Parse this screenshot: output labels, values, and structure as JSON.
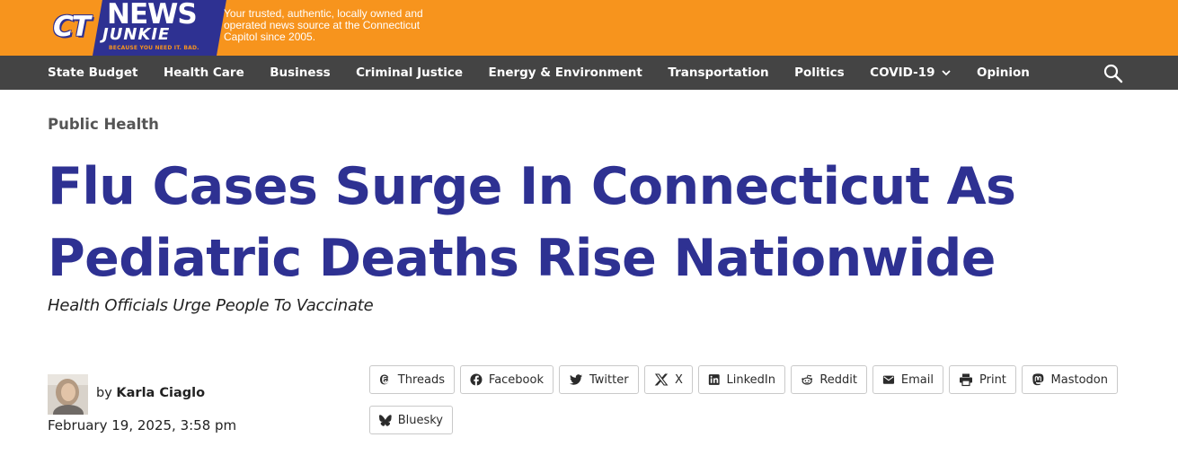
{
  "header": {
    "logo_ct": "CT",
    "logo_news": "NEWS",
    "logo_junkie": "JUNKIE",
    "logo_tagline": "BECAUSE YOU NEED IT. BAD.",
    "description": "Your trusted, authentic, locally owned and operated news source at the Connecticut Capitol since 2005."
  },
  "nav": {
    "items": [
      "State Budget",
      "Health Care",
      "Business",
      "Criminal Justice",
      "Energy & Environment",
      "Transportation",
      "Politics",
      "COVID-19",
      "Opinion"
    ],
    "search_icon": "search-icon"
  },
  "article": {
    "category": "Public Health",
    "title_line1": "Flu Cases Surge In Connecticut As",
    "title_line2": "Pediatric Deaths Rise Nationwide",
    "subtitle": "Health Officials Urge People To Vaccinate",
    "byline_prefix": "by",
    "author": "Karla Ciaglo",
    "date": "February 19, 2025, 3:58 pm"
  },
  "share": {
    "buttons": [
      {
        "label": "Threads",
        "icon": "threads-icon"
      },
      {
        "label": "Facebook",
        "icon": "facebook-icon"
      },
      {
        "label": "Twitter",
        "icon": "twitter-icon"
      },
      {
        "label": "X",
        "icon": "x-icon"
      },
      {
        "label": "LinkedIn",
        "icon": "linkedin-icon"
      },
      {
        "label": "Reddit",
        "icon": "reddit-icon"
      },
      {
        "label": "Email",
        "icon": "email-icon"
      },
      {
        "label": "Print",
        "icon": "print-icon"
      },
      {
        "label": "Mastodon",
        "icon": "mastodon-icon"
      },
      {
        "label": "Bluesky",
        "icon": "bluesky-icon"
      }
    ]
  },
  "colors": {
    "brand_orange": "#f7941d",
    "brand_navy": "#2e3192",
    "nav_gray": "#444444"
  }
}
